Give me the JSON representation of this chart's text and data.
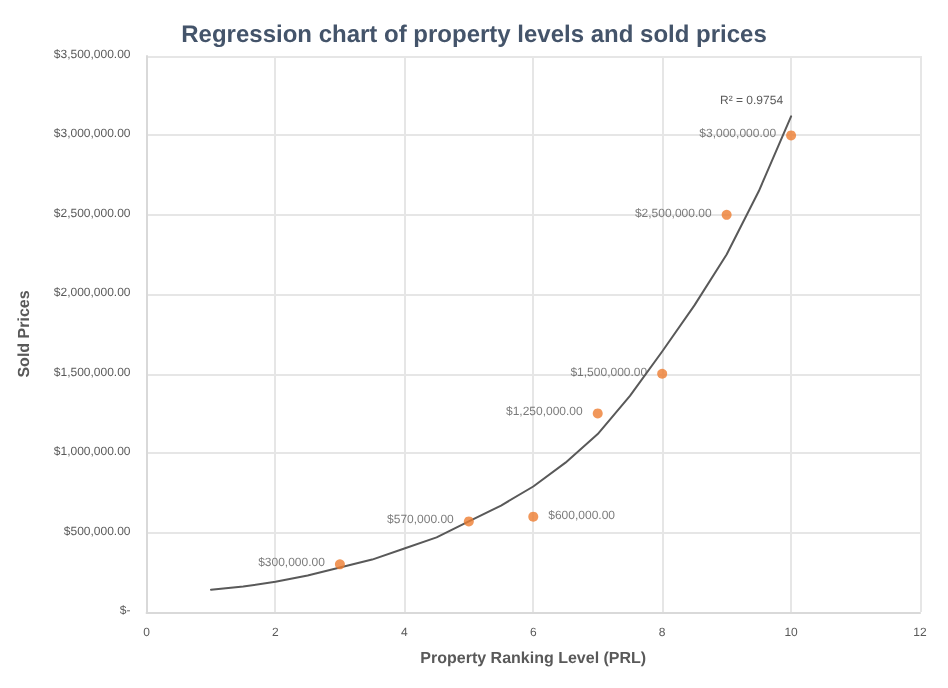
{
  "chart_data": {
    "type": "scatter",
    "title": "Regression chart of property levels and sold prices",
    "xlabel": "Property Ranking Level (PRL)",
    "ylabel": "Sold Prices",
    "xlim": [
      0,
      12
    ],
    "xticks": [
      0,
      2,
      4,
      6,
      8,
      10,
      12
    ],
    "ylim": [
      0,
      3500000
    ],
    "yticks": [
      {
        "value": 0,
        "label": "$-"
      },
      {
        "value": 500000,
        "label": "$500,000.00"
      },
      {
        "value": 1000000,
        "label": "$1,000,000.00"
      },
      {
        "value": 1500000,
        "label": "$1,500,000.00"
      },
      {
        "value": 2000000,
        "label": "$2,000,000.00"
      },
      {
        "value": 2500000,
        "label": "$2,500,000.00"
      },
      {
        "value": 3000000,
        "label": "$3,000,000.00"
      },
      {
        "value": 3500000,
        "label": "$3,500,000.00"
      }
    ],
    "grid": true,
    "marker": "circle",
    "series": [
      {
        "color": "#ed7d31",
        "x": [
          3,
          5,
          6,
          7,
          8,
          9,
          10
        ],
        "values": [
          300000,
          570000,
          600000,
          1250000,
          1500000,
          2500000,
          3000000
        ],
        "value_labels": [
          "$300,000.00",
          "$570,000.00",
          "$600,000.00",
          "$1,250,000.00",
          "$1,500,000.00",
          "$2,500,000.00",
          "$3,000,000.00"
        ]
      },
      {
        "type": "line",
        "color": "#595959",
        "line_style": "solid",
        "marker": "none",
        "x": [
          1,
          1.5,
          2,
          2.5,
          3,
          3.5,
          4,
          4.5,
          5,
          5.5,
          6,
          6.5,
          7,
          7.5,
          8,
          8.5,
          9,
          9.5,
          10
        ],
        "values": [
          140000,
          160000,
          190000,
          230000,
          280000,
          330000,
          400000,
          470000,
          570000,
          670000,
          790000,
          940000,
          1120000,
          1360000,
          1640000,
          1930000,
          2250000,
          2650000,
          3120000
        ]
      }
    ],
    "annotations": [
      {
        "text": "R² = 0.9754",
        "x": 10,
        "y": 3120000
      }
    ]
  }
}
